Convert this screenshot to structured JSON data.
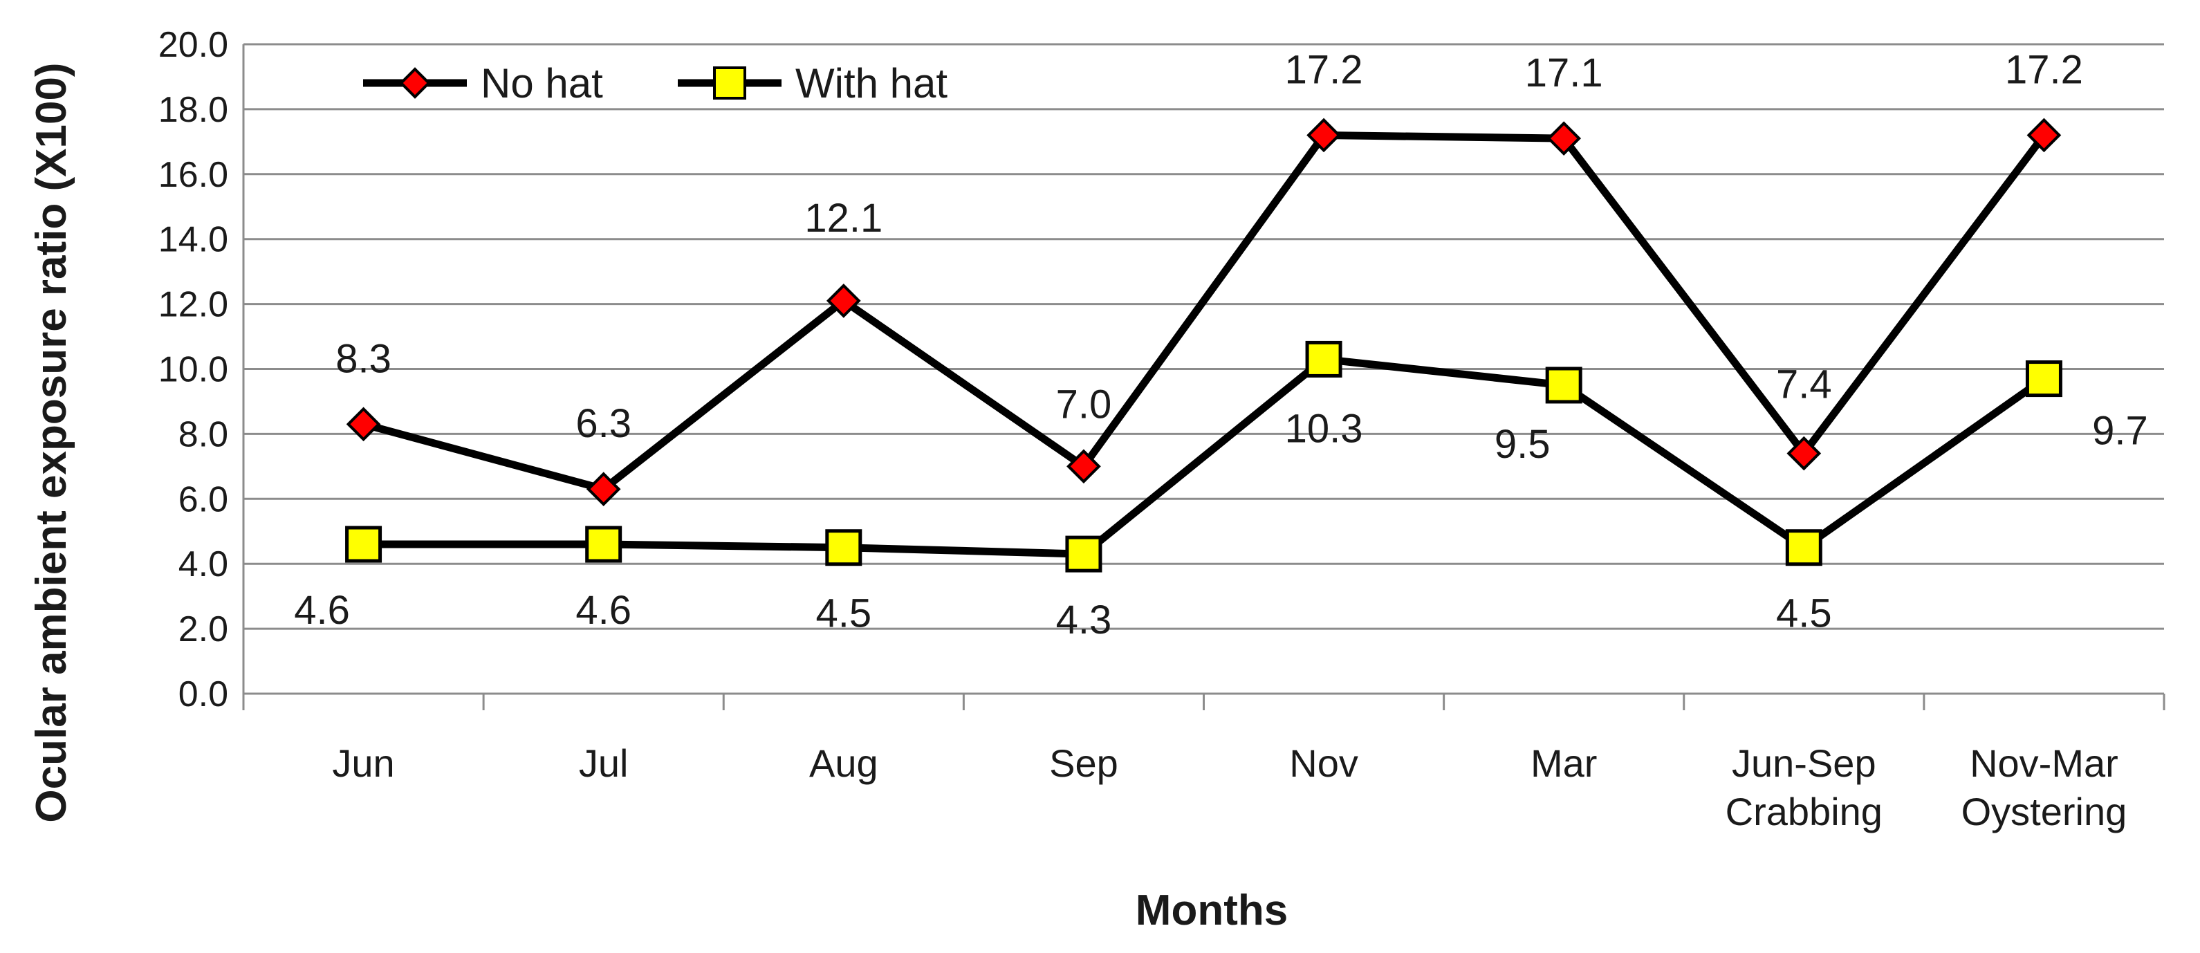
{
  "chart_data": {
    "type": "line",
    "title": "",
    "xlabel": "Months",
    "ylabel": "Ocular ambient exposure ratio (X100)",
    "ylim": [
      0,
      20
    ],
    "ytick_step": 2,
    "ytick_labels": [
      "0.0",
      "2.0",
      "4.0",
      "6.0",
      "8.0",
      "10.0",
      "12.0",
      "14.0",
      "16.0",
      "18.0",
      "20.0"
    ],
    "grid": "horizontal",
    "legend_position": "top-left",
    "categories": [
      [
        "Jun"
      ],
      [
        "Jul"
      ],
      [
        "Aug"
      ],
      [
        "Sep"
      ],
      [
        "Nov"
      ],
      [
        "Mar"
      ],
      [
        "Jun-Sep",
        "Crabbing"
      ],
      [
        "Nov-Mar",
        "Oystering"
      ]
    ],
    "series": [
      {
        "name": "No hat",
        "marker": "diamond",
        "marker_color": "#ff0000",
        "line_color": "#000000",
        "values": [
          8.3,
          6.3,
          12.1,
          7.0,
          17.2,
          17.1,
          7.4,
          17.2
        ],
        "labels": [
          "8.3",
          "6.3",
          "12.1",
          "7.0",
          "17.2",
          "17.1",
          "7.4",
          "17.2"
        ]
      },
      {
        "name": "With hat",
        "marker": "square",
        "marker_color": "#ffff00",
        "line_color": "#000000",
        "values": [
          4.6,
          4.6,
          4.5,
          4.3,
          10.3,
          9.5,
          4.5,
          9.7
        ],
        "labels": [
          "4.6",
          "4.6",
          "4.5",
          "4.3",
          "10.3",
          "9.5",
          "4.5",
          "9.7"
        ]
      }
    ]
  }
}
